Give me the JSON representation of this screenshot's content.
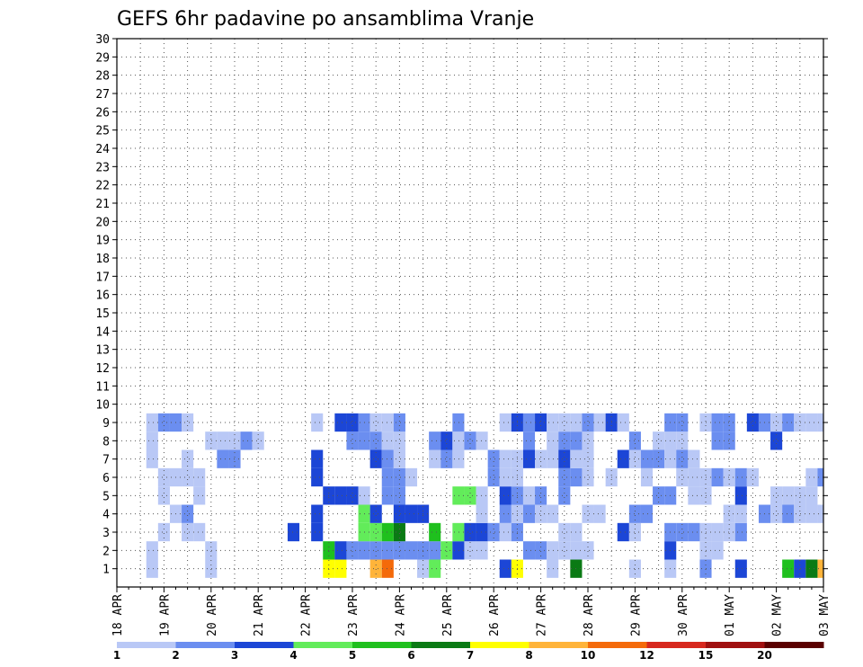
{
  "chart_data": {
    "type": "heatmap",
    "title": "GEFS 6hr padavine po ansamblima Vranje",
    "x_ticks": [
      "18 APR",
      "19 APR",
      "20 APR",
      "21 APR",
      "22 APR",
      "23 APR",
      "24 APR",
      "25 APR",
      "26 APR",
      "27 APR",
      "28 APR",
      "29 APR",
      "30 APR",
      "01 MAY",
      "02 MAY",
      "03 MAY"
    ],
    "y_ticks": [
      "1",
      "2",
      "3",
      "4",
      "5",
      "6",
      "7",
      "8",
      "9",
      "10",
      "11",
      "12",
      "13",
      "14",
      "15",
      "16",
      "17",
      "18",
      "19",
      "20",
      "21",
      "22",
      "23",
      "24",
      "25",
      "26",
      "27",
      "28",
      "29",
      "30"
    ],
    "y_range": [
      0,
      30
    ],
    "time_steps": 61,
    "grid": true,
    "colorbar": {
      "labels": [
        "1",
        "2",
        "3",
        "4",
        "5",
        "6",
        "7",
        "8",
        "10",
        "12",
        "15",
        "20"
      ],
      "colors": [
        "#b9c8f6",
        "#6b8ef0",
        "#1c46d6",
        "#62ec5a",
        "#1fc01e",
        "#0a7a14",
        "#ffff00",
        "#ffb43a",
        "#f46a0a",
        "#d7281e",
        "#a01010",
        "#5a0000"
      ]
    },
    "cells": [
      [
        3,
        1,
        0
      ],
      [
        8,
        1,
        0
      ],
      [
        18,
        1,
        6
      ],
      [
        19,
        1,
        6
      ],
      [
        22,
        1,
        7
      ],
      [
        23,
        1,
        8
      ],
      [
        26,
        1,
        0
      ],
      [
        27,
        1,
        3
      ],
      [
        33,
        1,
        2
      ],
      [
        34,
        1,
        6
      ],
      [
        37,
        1,
        0
      ],
      [
        39,
        1,
        5
      ],
      [
        44,
        1,
        0
      ],
      [
        47,
        1,
        0
      ],
      [
        50,
        1,
        1
      ],
      [
        53,
        1,
        2
      ],
      [
        57,
        1,
        4
      ],
      [
        58,
        1,
        2
      ],
      [
        59,
        1,
        5
      ],
      [
        60,
        1,
        7
      ],
      [
        3,
        2,
        0
      ],
      [
        8,
        2,
        0
      ],
      [
        18,
        2,
        4
      ],
      [
        19,
        2,
        2
      ],
      [
        20,
        2,
        1
      ],
      [
        21,
        2,
        1
      ],
      [
        22,
        2,
        1
      ],
      [
        23,
        2,
        1
      ],
      [
        24,
        2,
        1
      ],
      [
        25,
        2,
        1
      ],
      [
        26,
        2,
        1
      ],
      [
        27,
        2,
        1
      ],
      [
        28,
        2,
        3
      ],
      [
        29,
        2,
        2
      ],
      [
        30,
        2,
        0
      ],
      [
        31,
        2,
        0
      ],
      [
        35,
        2,
        1
      ],
      [
        36,
        2,
        1
      ],
      [
        37,
        2,
        0
      ],
      [
        38,
        2,
        0
      ],
      [
        39,
        2,
        0
      ],
      [
        40,
        2,
        0
      ],
      [
        47,
        2,
        2
      ],
      [
        50,
        2,
        0
      ],
      [
        51,
        2,
        0
      ],
      [
        4,
        3,
        0
      ],
      [
        6,
        3,
        0
      ],
      [
        7,
        3,
        0
      ],
      [
        15,
        3,
        2
      ],
      [
        17,
        3,
        2
      ],
      [
        21,
        3,
        3
      ],
      [
        22,
        3,
        3
      ],
      [
        23,
        3,
        4
      ],
      [
        24,
        3,
        5
      ],
      [
        27,
        3,
        4
      ],
      [
        29,
        3,
        3
      ],
      [
        30,
        3,
        2
      ],
      [
        31,
        3,
        2
      ],
      [
        32,
        3,
        1
      ],
      [
        33,
        3,
        0
      ],
      [
        34,
        3,
        1
      ],
      [
        38,
        3,
        0
      ],
      [
        39,
        3,
        0
      ],
      [
        43,
        3,
        2
      ],
      [
        44,
        3,
        0
      ],
      [
        47,
        3,
        1
      ],
      [
        48,
        3,
        1
      ],
      [
        49,
        3,
        1
      ],
      [
        50,
        3,
        0
      ],
      [
        51,
        3,
        0
      ],
      [
        52,
        3,
        0
      ],
      [
        53,
        3,
        1
      ],
      [
        5,
        4,
        0
      ],
      [
        6,
        4,
        1
      ],
      [
        17,
        4,
        2
      ],
      [
        21,
        4,
        3
      ],
      [
        22,
        4,
        2
      ],
      [
        24,
        4,
        2
      ],
      [
        25,
        4,
        2
      ],
      [
        26,
        4,
        2
      ],
      [
        31,
        4,
        0
      ],
      [
        33,
        4,
        1
      ],
      [
        34,
        4,
        0
      ],
      [
        35,
        4,
        1
      ],
      [
        36,
        4,
        0
      ],
      [
        37,
        4,
        0
      ],
      [
        40,
        4,
        0
      ],
      [
        41,
        4,
        0
      ],
      [
        44,
        4,
        1
      ],
      [
        45,
        4,
        1
      ],
      [
        52,
        4,
        0
      ],
      [
        53,
        4,
        0
      ],
      [
        55,
        4,
        1
      ],
      [
        56,
        4,
        0
      ],
      [
        57,
        4,
        1
      ],
      [
        58,
        4,
        0
      ],
      [
        59,
        4,
        0
      ],
      [
        60,
        4,
        0
      ],
      [
        4,
        5,
        0
      ],
      [
        7,
        5,
        0
      ],
      [
        18,
        5,
        2
      ],
      [
        19,
        5,
        2
      ],
      [
        20,
        5,
        2
      ],
      [
        21,
        5,
        0
      ],
      [
        23,
        5,
        1
      ],
      [
        24,
        5,
        1
      ],
      [
        29,
        5,
        3
      ],
      [
        30,
        5,
        3
      ],
      [
        31,
        5,
        0
      ],
      [
        33,
        5,
        2
      ],
      [
        34,
        5,
        1
      ],
      [
        35,
        5,
        0
      ],
      [
        36,
        5,
        1
      ],
      [
        38,
        5,
        1
      ],
      [
        46,
        5,
        1
      ],
      [
        47,
        5,
        1
      ],
      [
        49,
        5,
        0
      ],
      [
        50,
        5,
        0
      ],
      [
        53,
        5,
        2
      ],
      [
        56,
        5,
        0
      ],
      [
        57,
        5,
        0
      ],
      [
        58,
        5,
        0
      ],
      [
        59,
        5,
        0
      ],
      [
        4,
        6,
        0
      ],
      [
        5,
        6,
        0
      ],
      [
        6,
        6,
        0
      ],
      [
        7,
        6,
        0
      ],
      [
        17,
        6,
        2
      ],
      [
        23,
        6,
        1
      ],
      [
        24,
        6,
        1
      ],
      [
        25,
        6,
        0
      ],
      [
        32,
        6,
        1
      ],
      [
        33,
        6,
        0
      ],
      [
        34,
        6,
        0
      ],
      [
        38,
        6,
        1
      ],
      [
        39,
        6,
        1
      ],
      [
        40,
        6,
        0
      ],
      [
        42,
        6,
        0
      ],
      [
        45,
        6,
        0
      ],
      [
        48,
        6,
        0
      ],
      [
        49,
        6,
        0
      ],
      [
        50,
        6,
        0
      ],
      [
        51,
        6,
        1
      ],
      [
        52,
        6,
        0
      ],
      [
        53,
        6,
        1
      ],
      [
        54,
        6,
        0
      ],
      [
        59,
        6,
        0
      ],
      [
        60,
        6,
        1
      ],
      [
        3,
        7,
        0
      ],
      [
        6,
        7,
        0
      ],
      [
        9,
        7,
        1
      ],
      [
        10,
        7,
        1
      ],
      [
        17,
        7,
        2
      ],
      [
        22,
        7,
        2
      ],
      [
        23,
        7,
        1
      ],
      [
        24,
        7,
        0
      ],
      [
        27,
        7,
        0
      ],
      [
        28,
        7,
        1
      ],
      [
        29,
        7,
        0
      ],
      [
        32,
        7,
        1
      ],
      [
        33,
        7,
        0
      ],
      [
        34,
        7,
        0
      ],
      [
        35,
        7,
        2
      ],
      [
        36,
        7,
        0
      ],
      [
        37,
        7,
        0
      ],
      [
        38,
        7,
        2
      ],
      [
        39,
        7,
        0
      ],
      [
        40,
        7,
        0
      ],
      [
        43,
        7,
        2
      ],
      [
        44,
        7,
        0
      ],
      [
        45,
        7,
        1
      ],
      [
        46,
        7,
        1
      ],
      [
        47,
        7,
        0
      ],
      [
        48,
        7,
        1
      ],
      [
        49,
        7,
        0
      ],
      [
        3,
        8,
        0
      ],
      [
        8,
        8,
        0
      ],
      [
        9,
        8,
        0
      ],
      [
        10,
        8,
        0
      ],
      [
        11,
        8,
        1
      ],
      [
        12,
        8,
        0
      ],
      [
        20,
        8,
        1
      ],
      [
        21,
        8,
        1
      ],
      [
        22,
        8,
        1
      ],
      [
        23,
        8,
        0
      ],
      [
        24,
        8,
        0
      ],
      [
        27,
        8,
        1
      ],
      [
        28,
        8,
        2
      ],
      [
        29,
        8,
        0
      ],
      [
        30,
        8,
        1
      ],
      [
        31,
        8,
        0
      ],
      [
        35,
        8,
        1
      ],
      [
        37,
        8,
        0
      ],
      [
        38,
        8,
        1
      ],
      [
        39,
        8,
        1
      ],
      [
        40,
        8,
        0
      ],
      [
        44,
        8,
        1
      ],
      [
        46,
        8,
        0
      ],
      [
        47,
        8,
        0
      ],
      [
        48,
        8,
        0
      ],
      [
        51,
        8,
        1
      ],
      [
        52,
        8,
        1
      ],
      [
        56,
        8,
        2
      ],
      [
        3,
        9,
        0
      ],
      [
        4,
        9,
        1
      ],
      [
        5,
        9,
        1
      ],
      [
        6,
        9,
        0
      ],
      [
        17,
        9,
        0
      ],
      [
        19,
        9,
        2
      ],
      [
        20,
        9,
        2
      ],
      [
        21,
        9,
        1
      ],
      [
        22,
        9,
        0
      ],
      [
        23,
        9,
        0
      ],
      [
        24,
        9,
        1
      ],
      [
        29,
        9,
        1
      ],
      [
        33,
        9,
        0
      ],
      [
        34,
        9,
        2
      ],
      [
        35,
        9,
        1
      ],
      [
        36,
        9,
        2
      ],
      [
        37,
        9,
        0
      ],
      [
        38,
        9,
        0
      ],
      [
        39,
        9,
        0
      ],
      [
        40,
        9,
        1
      ],
      [
        41,
        9,
        0
      ],
      [
        42,
        9,
        2
      ],
      [
        43,
        9,
        0
      ],
      [
        47,
        9,
        1
      ],
      [
        48,
        9,
        1
      ],
      [
        50,
        9,
        0
      ],
      [
        51,
        9,
        1
      ],
      [
        52,
        9,
        1
      ],
      [
        54,
        9,
        2
      ],
      [
        55,
        9,
        1
      ],
      [
        56,
        9,
        0
      ],
      [
        57,
        9,
        1
      ],
      [
        58,
        9,
        0
      ],
      [
        59,
        9,
        0
      ],
      [
        60,
        9,
        0
      ]
    ]
  }
}
